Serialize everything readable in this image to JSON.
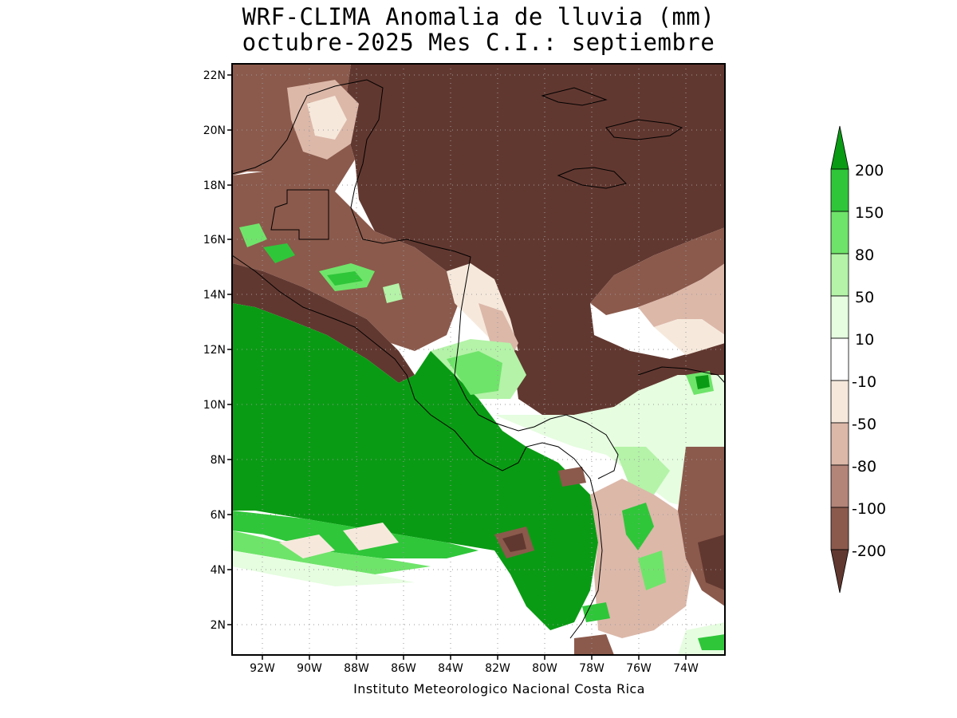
{
  "title": {
    "line1": "WRF-CLIMA Anomalia de lluvia (mm)",
    "line2": "octubre-2025 Mes C.I.: septiembre"
  },
  "map": {
    "lat_ticks": [
      "22N",
      "20N",
      "18N",
      "16N",
      "14N",
      "12N",
      "10N",
      "8N",
      "6N",
      "4N",
      "2N"
    ],
    "lon_ticks": [
      "92W",
      "90W",
      "88W",
      "86W",
      "84W",
      "82W",
      "80W",
      "78W",
      "76W",
      "74W"
    ],
    "gridlines": "dotted"
  },
  "colorbar": {
    "labels": [
      "200",
      "150",
      "80",
      "50",
      "10",
      "-10",
      "-50",
      "-80",
      "-100",
      "-200"
    ],
    "colors": {
      "gt200": "#0a9b14",
      "150_200": "#2fc63a",
      "80_150": "#6fe46a",
      "50_80": "#b4f3a8",
      "10_50": "#e6fde0",
      "m10_10": "#ffffff",
      "m50_m10": "#f6e9dc",
      "m80_m50": "#dcb8a9",
      "m100_m80": "#b38478",
      "m200_m100": "#8b5a4c",
      "lt_m200": "#613830"
    }
  },
  "footer": "Instituto Meteorologico Nacional Costa Rica"
}
